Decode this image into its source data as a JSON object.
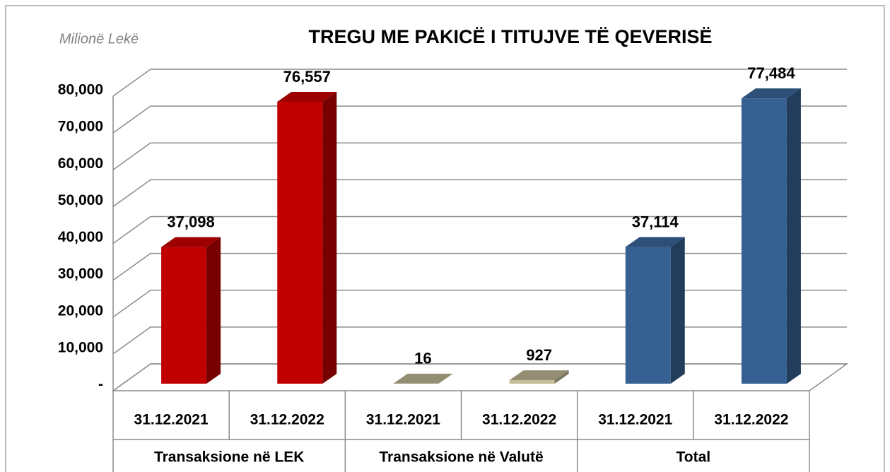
{
  "chart_data": {
    "type": "bar3d",
    "title": "TREGU ME PAKICË I TITUJVE TË QEVERISË",
    "unit_label": "Milionë Lekë",
    "categories": [
      "31.12.2021",
      "31.12.2022",
      "31.12.2021",
      "31.12.2022",
      "31.12.2021",
      "31.12.2022"
    ],
    "groups": [
      "Transaksione në LEK",
      "Transaksione në Valutë",
      "Total"
    ],
    "values": [
      37098,
      76557,
      16,
      927,
      37114,
      77484
    ],
    "value_labels": [
      "37,098",
      "76,557",
      "16",
      "927",
      "37,114",
      "77,484"
    ],
    "colors": [
      "#c00000",
      "#c00000",
      "#c4bd97",
      "#c4bd97",
      "#376092",
      "#376092"
    ],
    "ylim": [
      0,
      80000
    ],
    "yticks": [
      {
        "value": 0,
        "label": "-"
      },
      {
        "value": 10000,
        "label": "10,000"
      },
      {
        "value": 20000,
        "label": "20,000"
      },
      {
        "value": 30000,
        "label": "30,000"
      },
      {
        "value": 40000,
        "label": "40,000"
      },
      {
        "value": 50000,
        "label": "50,000"
      },
      {
        "value": 60000,
        "label": "60,000"
      },
      {
        "value": 70000,
        "label": "70,000"
      },
      {
        "value": 80000,
        "label": "80,000"
      }
    ],
    "grid": true
  }
}
